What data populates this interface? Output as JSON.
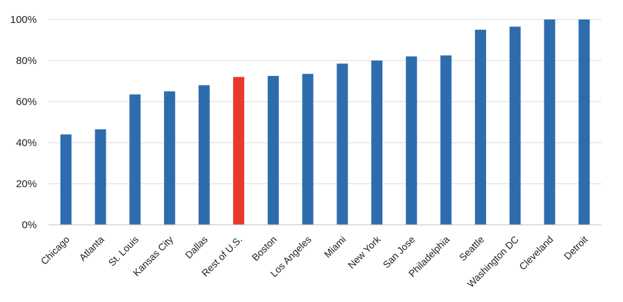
{
  "chart_data": {
    "type": "bar",
    "title": "",
    "xlabel": "",
    "ylabel": "",
    "ylim": [
      0,
      100
    ],
    "y_ticks": [
      0,
      20,
      40,
      60,
      80,
      100
    ],
    "y_tick_suffix": "%",
    "grid": true,
    "legend": "none",
    "categories": [
      "Chicago",
      "Atlanta",
      "St. Louis",
      "Kansas City",
      "Dallas",
      "Rest of U.S.",
      "Boston",
      "Los Angeles",
      "Miami",
      "New York",
      "San Jose",
      "Philadelphia",
      "Seattle",
      "Washington DC",
      "Cleveland",
      "Detroit"
    ],
    "values": [
      44,
      46.5,
      63.5,
      65,
      68,
      72,
      72.5,
      73.5,
      78.5,
      80,
      82,
      82.5,
      95,
      96.5,
      100,
      100
    ],
    "highlight_category": "Rest of U.S.",
    "colors": {
      "bar": "#2E6DAD",
      "highlight": "#E8392A",
      "grid": "#D9D9D9",
      "axis": "#BFBFBF"
    }
  }
}
